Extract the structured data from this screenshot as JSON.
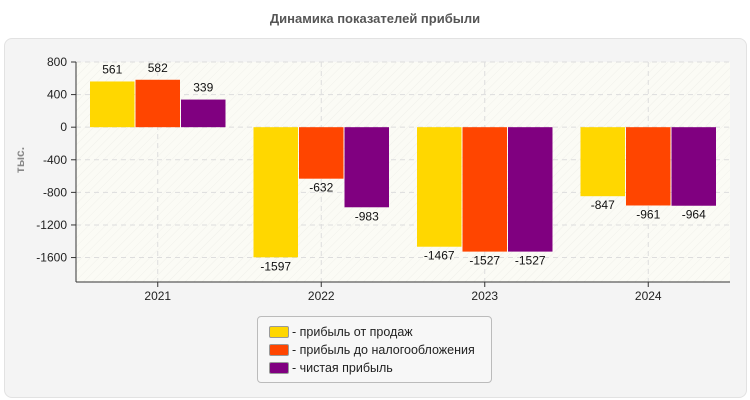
{
  "chart_data": {
    "type": "bar",
    "title": "Динамика показателей прибыли",
    "ylabel": "тыс.",
    "xlabel": "",
    "categories": [
      "2021",
      "2022",
      "2023",
      "2024"
    ],
    "series": [
      {
        "name": "- прибыль от продаж",
        "color": "#FFD700",
        "values": [
          561,
          -1597,
          -1467,
          -847
        ]
      },
      {
        "name": "- прибыль до налогообложения",
        "color": "#FF4500",
        "values": [
          582,
          -632,
          -1527,
          -961
        ]
      },
      {
        "name": "- чистая прибыль",
        "color": "#800080",
        "values": [
          339,
          -983,
          -1527,
          -964
        ]
      }
    ],
    "yticks": [
      800,
      400,
      0,
      -400,
      -800,
      -1200,
      -1600
    ],
    "ylim": [
      -1900,
      800
    ],
    "grid": true,
    "legend": "bottom"
  }
}
